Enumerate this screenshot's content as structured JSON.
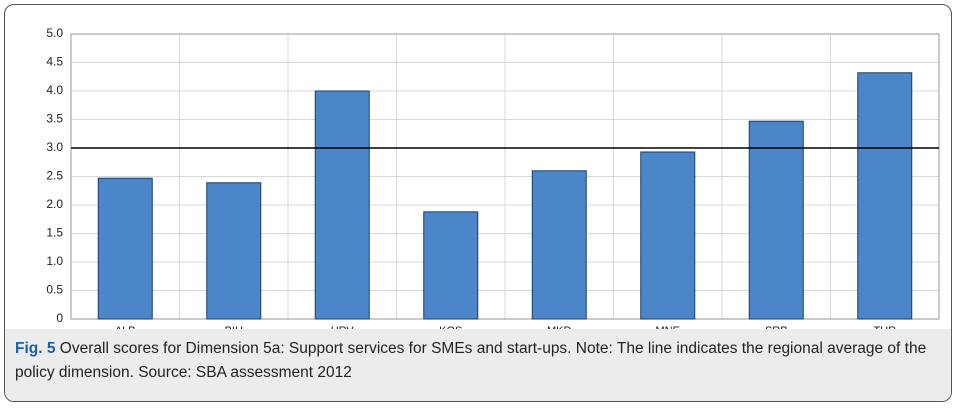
{
  "chart_data": {
    "type": "bar",
    "categories": [
      "ALB",
      "BIH",
      "HRV",
      "KOS",
      "MKD",
      "MNE",
      "SRB",
      "TUR"
    ],
    "values": [
      2.47,
      2.39,
      4.0,
      1.88,
      2.6,
      2.93,
      3.47,
      4.32
    ],
    "color": "#4a86c8",
    "reference_line": 3.0,
    "ylim": [
      0,
      5
    ],
    "yticks": [
      0,
      0.5,
      {
        "value": 1,
        "label": "1.0"
      },
      1.5,
      {
        "value": 2,
        "label": "2.0"
      },
      2.5,
      {
        "value": 3,
        "label": "3.0"
      },
      3.5,
      {
        "value": 4,
        "label": "4.0"
      },
      4.5,
      {
        "value": 5,
        "label": "5.0"
      }
    ],
    "grid": true,
    "caption": {
      "label": "Fig. 5",
      "text": "Overall scores for Dimension 5a: Support services for SMEs and start-ups. Note: The line indicates the regional average of the policy dimension. Source: SBA assessment 2012"
    }
  }
}
